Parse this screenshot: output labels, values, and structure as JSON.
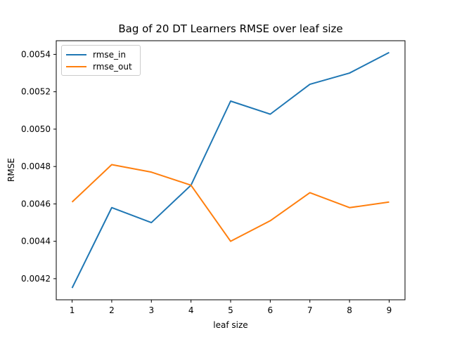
{
  "chart_data": {
    "type": "line",
    "title": "Bag of 20 DT Learners RMSE over leaf size",
    "xlabel": "leaf size",
    "ylabel": "RMSE",
    "x": [
      1,
      2,
      3,
      4,
      5,
      6,
      7,
      8,
      9
    ],
    "series": [
      {
        "name": "rmse_in",
        "color": "#1f77b4",
        "values": [
          0.00415,
          0.00458,
          0.0045,
          0.0047,
          0.00515,
          0.00508,
          0.00524,
          0.0053,
          0.00541
        ]
      },
      {
        "name": "rmse_out",
        "color": "#ff7f0e",
        "values": [
          0.00461,
          0.00481,
          0.00477,
          0.0047,
          0.0044,
          0.00451,
          0.00466,
          0.00458,
          0.00461
        ]
      }
    ],
    "xticks": [
      1,
      2,
      3,
      4,
      5,
      6,
      7,
      8,
      9
    ],
    "yticks": [
      0.0042,
      0.0044,
      0.0046,
      0.0048,
      0.005,
      0.0052,
      0.0054
    ],
    "xlim": [
      0.6,
      9.4
    ],
    "ylim": [
      0.004087,
      0.005473
    ],
    "grid": false,
    "legend_position": "upper-left",
    "spine_color": "#000000",
    "background_color": "#ffffff"
  }
}
